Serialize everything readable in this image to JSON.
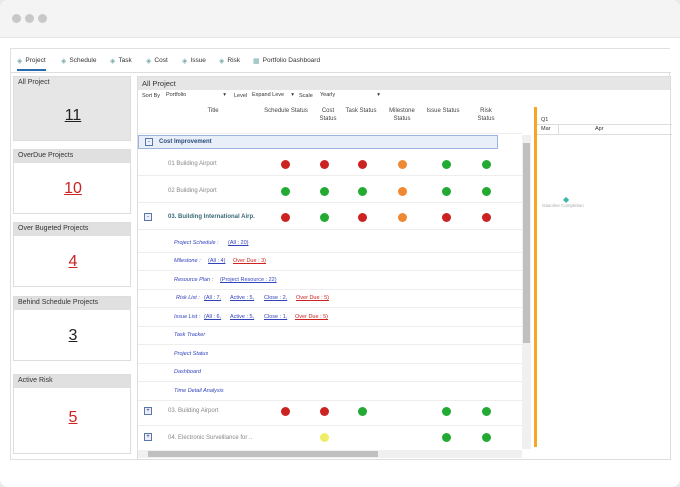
{
  "tabs": [
    {
      "label": "Project",
      "icon": "project-icon"
    },
    {
      "label": "Schedule",
      "icon": "schedule-icon"
    },
    {
      "label": "Task",
      "icon": "task-icon"
    },
    {
      "label": "Cost",
      "icon": "cost-icon"
    },
    {
      "label": "Issue",
      "icon": "issue-icon"
    },
    {
      "label": "Risk",
      "icon": "risk-icon"
    },
    {
      "label": "Portfolio Dashboard",
      "icon": "dashboard-icon"
    }
  ],
  "kpis": [
    {
      "title": "All Project",
      "value": "11"
    },
    {
      "title": "OverDue Projects",
      "value": "10"
    },
    {
      "title": "Over Bugeted Projects",
      "value": "4"
    },
    {
      "title": "Behind Schedule Projects",
      "value": "3"
    },
    {
      "title": "Active Risk",
      "value": "5"
    }
  ],
  "grid": {
    "title": "All Project",
    "toolbar": {
      "sortby_label": "Sort By",
      "sortby_value": "Portfolio",
      "level_label": "Level",
      "level_value": "Expand Leve",
      "scale_label": "Scale",
      "scale_value": "Yearly"
    },
    "columns": [
      "Title",
      "Schedule Status",
      "Cost Status",
      "Task Status",
      "Milestone Status",
      "Issue Status",
      "Risk Status"
    ],
    "gantt": {
      "quarter": "Q1",
      "months": [
        "Mar",
        "Apr"
      ],
      "milestone_label": "Gasoline Completion"
    }
  },
  "rows": {
    "group1": {
      "label": "Cost Improvement"
    },
    "r1": {
      "label": "01 Building Airport"
    },
    "r2": {
      "label": "02 Building Airport"
    },
    "r3": {
      "label": "03. Building International Airp."
    },
    "links": {
      "schedule": "Project Schedule :",
      "schedule_all": "(All : 20)",
      "milestone": "Milestone :",
      "milestone_all": "(All : 4)",
      "milestone_overdue": "Over Due : 3)",
      "resource": "Resource Plan :",
      "resource_val": "(Project Resource : 22)",
      "risk": "Risk List :",
      "risk_all": "(All : 7,",
      "risk_active": "Active : 5,",
      "risk_close": "Close : 2,",
      "risk_overdue": "Over Due : 5)",
      "issue": "Issue List :",
      "issue_all": "(All : 6,",
      "issue_active": "Active : 5,",
      "issue_close": "Close : 1,",
      "issue_overdue": "Over Due : 5)",
      "tracker": "Task Tracker",
      "status": "Project Status",
      "dashboard": "Dashboard",
      "time": "Time Detail Analysis"
    },
    "r4": {
      "label": "03. Building Airport"
    },
    "r5": {
      "label": "04. Electronic Surveillance for .."
    }
  }
}
